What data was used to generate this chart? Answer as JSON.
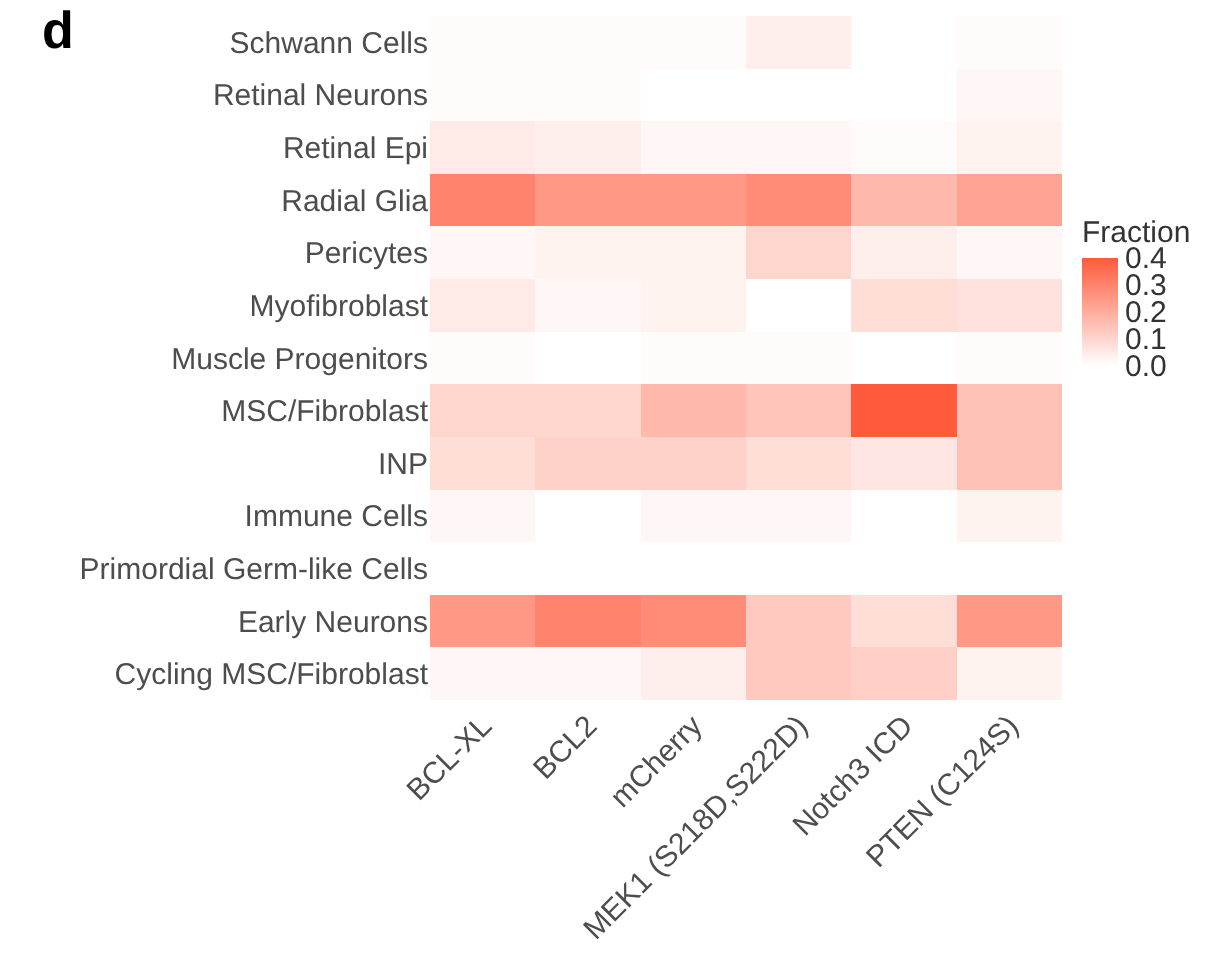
{
  "chart_data": {
    "type": "heatmap",
    "clabel": "Fraction",
    "annotations": [
      "d"
    ],
    "categories": [
      "BCL-XL",
      "BCL2",
      "mCherry",
      "MEK1 (S218D,S222D)",
      "Notch3 ICD",
      "PTEN (C124S)"
    ],
    "y_categories": [
      "Schwann Cells",
      "Retinal Neurons",
      "Retinal Epi",
      "Radial Glia",
      "Pericytes",
      "Myofibroblast",
      "Muscle Progenitors",
      "MSC/Fibroblast",
      "INP",
      "Immune Cells",
      "Primordial Germ-like Cells",
      "Early Neurons",
      "Cycling MSC/Fibroblast"
    ],
    "cells": [
      [
        0.01,
        0.01,
        0.01,
        0.04,
        0.0,
        0.01
      ],
      [
        0.01,
        0.01,
        0.0,
        0.0,
        0.0,
        0.02
      ],
      [
        0.05,
        0.04,
        0.02,
        0.02,
        0.01,
        0.03
      ],
      [
        0.3,
        0.25,
        0.25,
        0.28,
        0.17,
        0.22
      ],
      [
        0.02,
        0.03,
        0.03,
        0.1,
        0.04,
        0.02
      ],
      [
        0.05,
        0.02,
        0.03,
        0.0,
        0.08,
        0.07
      ],
      [
        0.01,
        0.0,
        0.01,
        0.01,
        0.0,
        0.01
      ],
      [
        0.1,
        0.1,
        0.17,
        0.14,
        0.4,
        0.15
      ],
      [
        0.08,
        0.11,
        0.11,
        0.08,
        0.06,
        0.15
      ],
      [
        0.02,
        0.0,
        0.02,
        0.02,
        0.0,
        0.03
      ],
      [
        0.0,
        0.0,
        0.0,
        0.0,
        0.0,
        0.0
      ],
      [
        0.25,
        0.3,
        0.28,
        0.13,
        0.08,
        0.25
      ],
      [
        0.02,
        0.02,
        0.04,
        0.13,
        0.12,
        0.03
      ]
    ],
    "clim": [
      0,
      0.4
    ],
    "cticks": [
      {
        "value": 0,
        "label": "0.0"
      },
      0.1,
      0.2,
      0.3,
      0.4
    ]
  }
}
